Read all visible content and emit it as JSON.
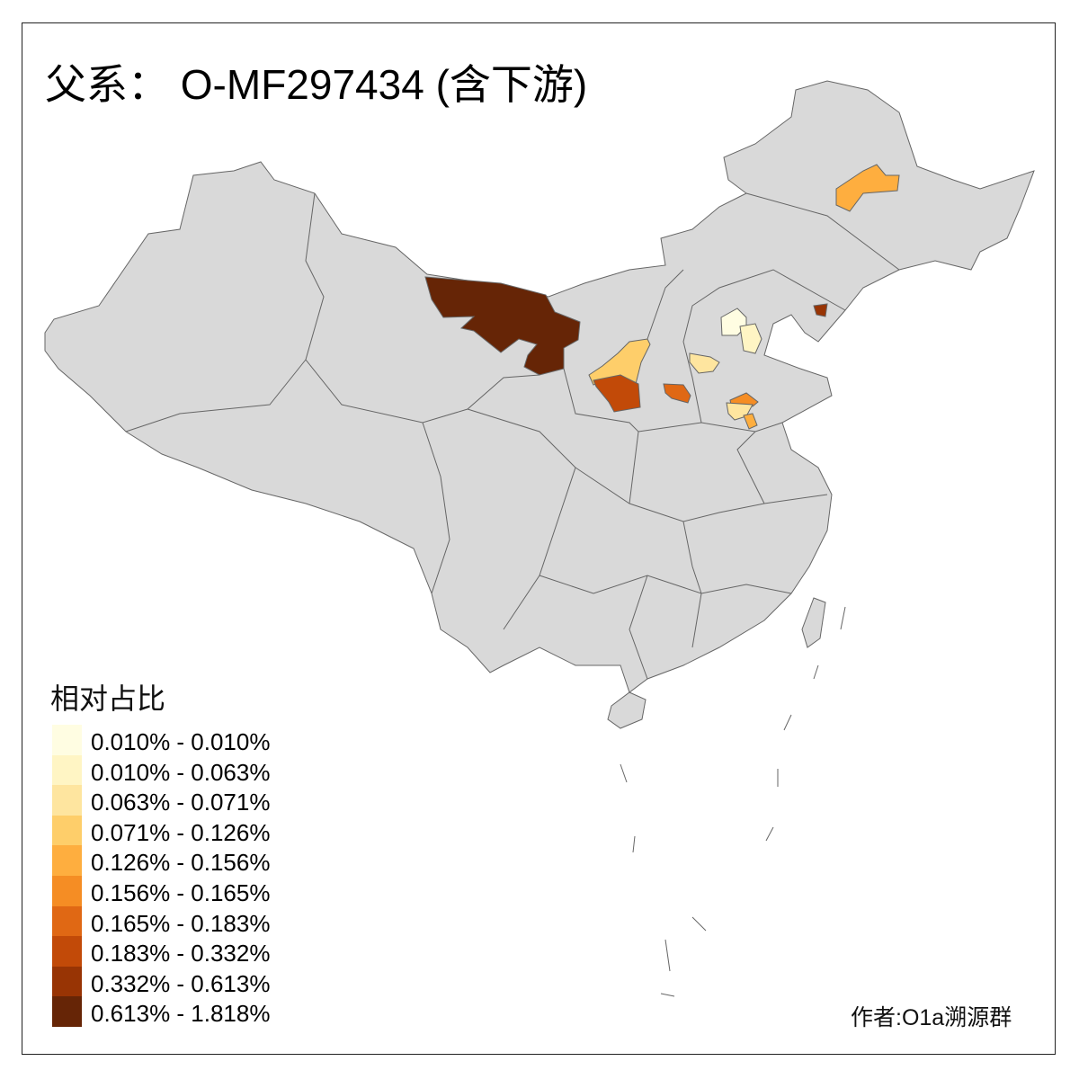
{
  "title": "父系： O-MF297434 (含下游)",
  "legend": {
    "title": "相对占比",
    "items": [
      {
        "label": "0.010% - 0.010%",
        "color": "#FFFDE2"
      },
      {
        "label": "0.010% - 0.063%",
        "color": "#FFF5C4"
      },
      {
        "label": "0.063% - 0.071%",
        "color": "#FEE59F"
      },
      {
        "label": "0.071% - 0.126%",
        "color": "#FECE6A"
      },
      {
        "label": "0.126% - 0.156%",
        "color": "#FEAE3F"
      },
      {
        "label": "0.156% - 0.165%",
        "color": "#F58D24"
      },
      {
        "label": "0.165% - 0.183%",
        "color": "#E06814"
      },
      {
        "label": "0.183% - 0.332%",
        "color": "#C24A08"
      },
      {
        "label": "0.332% - 0.613%",
        "color": "#983404"
      },
      {
        "label": "0.613% - 1.818%",
        "color": "#662506"
      }
    ]
  },
  "map": {
    "base_color": "#D9D9D9",
    "border_color": "#666666",
    "no_data_color": "#D9D9D9"
  },
  "author": "作者:O1a溯源群"
}
